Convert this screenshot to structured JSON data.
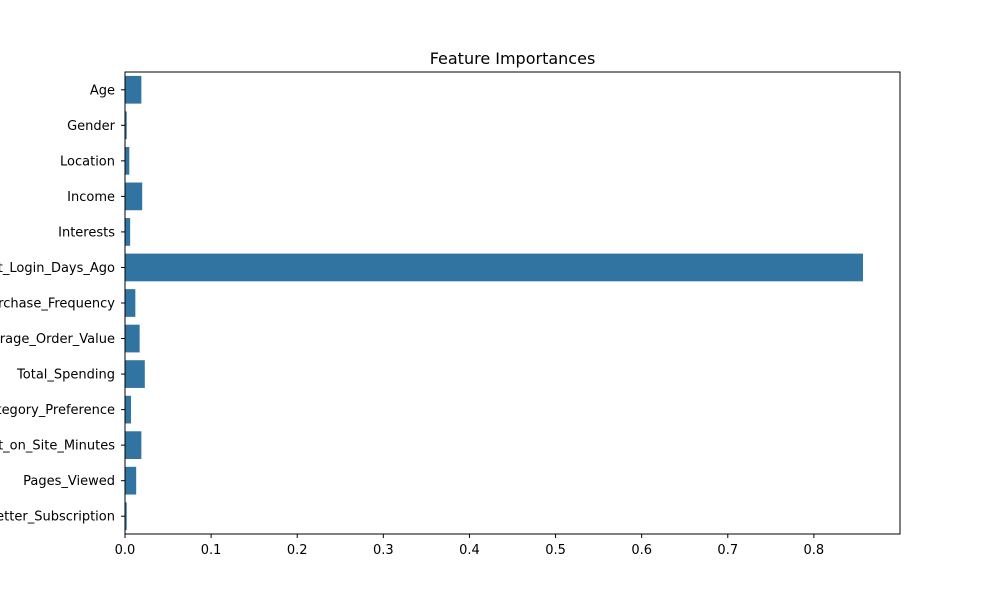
{
  "chart_data": {
    "type": "bar",
    "orientation": "horizontal",
    "title": "Feature Importances",
    "xlabel": "",
    "ylabel": "",
    "categories": [
      "Age",
      "Gender",
      "Location",
      "Income",
      "Interests",
      "Last_Login_Days_Ago",
      "Purchase_Frequency",
      "Average_Order_Value",
      "Total_Spending",
      "Product_Category_Preference",
      "Time_Spent_on_Site_Minutes",
      "Pages_Viewed",
      "Newsletter_Subscription"
    ],
    "values": [
      0.019,
      0.002,
      0.005,
      0.02,
      0.006,
      0.857,
      0.012,
      0.017,
      0.023,
      0.007,
      0.019,
      0.013,
      0.002
    ],
    "xlim": [
      0,
      0.9
    ],
    "xticks": [
      "0.0",
      "0.1",
      "0.2",
      "0.3",
      "0.4",
      "0.5",
      "0.6",
      "0.7",
      "0.8"
    ],
    "grid": false,
    "bar_color": "#3274a1",
    "frame_color": "#000000"
  }
}
